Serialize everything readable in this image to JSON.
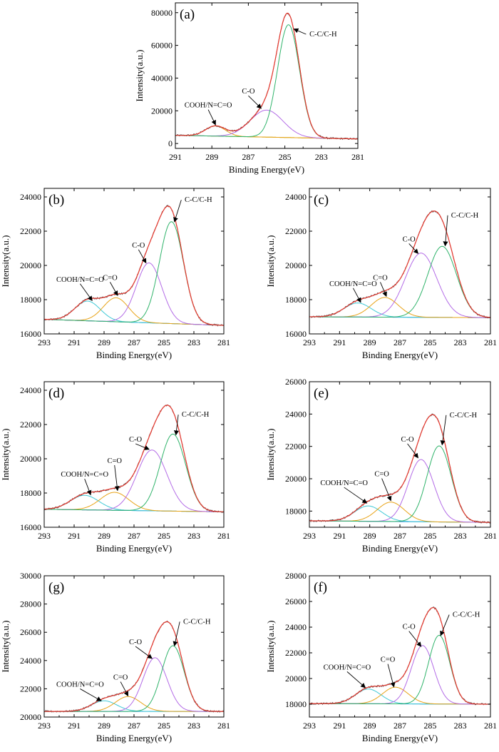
{
  "chart_data": [
    {
      "type": "line",
      "panel_label": "(a)",
      "xlabel": "Binding Energy(eV)",
      "ylabel": "Intensity(a.u.)",
      "xlim": [
        291,
        281
      ],
      "xticks": [
        "291",
        "289",
        "287",
        "285",
        "283",
        "281"
      ],
      "ylim": [
        -3000,
        86000
      ],
      "yticks": [
        "0",
        "20000",
        "40000",
        "60000",
        "80000"
      ],
      "baseline": {
        "start": 5000,
        "end": 2800
      },
      "peaks": [
        {
          "name": "COOH/N=C=O",
          "center": 288.8,
          "height": 6200,
          "sigma": 0.55,
          "color": "#e8a317"
        },
        {
          "name": "C-O",
          "center": 286.0,
          "height": 16500,
          "sigma": 0.9,
          "color": "#b36be6"
        },
        {
          "name": "C-C/C-H",
          "center": 284.8,
          "height": 69000,
          "sigma": 0.6,
          "color": "#2fb36a"
        }
      ],
      "annotations": [
        {
          "text": "COOH/N=C=O",
          "label_x": 289.2,
          "label_y": 22000,
          "arrow_x": 288.8,
          "arrow_y": 11500
        },
        {
          "text": "C-O",
          "label_x": 287.0,
          "label_y": 30500,
          "arrow_x": 286.3,
          "arrow_y": 21500
        },
        {
          "text": "C-C/C-H",
          "label_x": 282.9,
          "label_y": 65500,
          "arrow_x": 284.5,
          "arrow_y": 70000
        }
      ]
    },
    {
      "type": "line",
      "panel_label": "(b)",
      "xlabel": "Binding Energy(eV)",
      "ylabel": "Intensity(a.u.)",
      "xlim": [
        293,
        281
      ],
      "xticks": [
        "293",
        "291",
        "289",
        "287",
        "285",
        "283",
        "281"
      ],
      "ylim": [
        16000,
        24500
      ],
      "yticks": [
        "16000",
        "18000",
        "20000",
        "22000",
        "24000"
      ],
      "baseline": {
        "start": 16850,
        "end": 16500
      },
      "peaks": [
        {
          "name": "COOH/N=C=O",
          "center": 290.1,
          "height": 1150,
          "sigma": 0.85,
          "color": "#3fc9d6"
        },
        {
          "name": "C=O",
          "center": 288.2,
          "height": 1400,
          "sigma": 0.85,
          "color": "#e8a317"
        },
        {
          "name": "C-O",
          "center": 286.0,
          "height": 3500,
          "sigma": 0.85,
          "color": "#b36be6"
        },
        {
          "name": "C-C/C-H",
          "center": 284.5,
          "height": 5950,
          "sigma": 0.8,
          "color": "#2fb36a"
        }
      ],
      "annotations": [
        {
          "text": "COOH/N=C=O",
          "label_x": 290.6,
          "label_y": 19050,
          "arrow_x": 289.8,
          "arrow_y": 17950
        },
        {
          "text": "C=O",
          "label_x": 288.6,
          "label_y": 19150,
          "arrow_x": 288.1,
          "arrow_y": 18250
        },
        {
          "text": "C-O",
          "label_x": 286.7,
          "label_y": 21050,
          "arrow_x": 286.2,
          "arrow_y": 20150
        },
        {
          "text": "C-C/C-H",
          "label_x": 282.7,
          "label_y": 23700,
          "arrow_x": 284.3,
          "arrow_y": 22550
        }
      ]
    },
    {
      "type": "line",
      "panel_label": "(c)",
      "xlabel": "Binding Energy(eV)",
      "ylabel": "Intensity(a.u.)",
      "xlim": [
        293,
        281
      ],
      "xticks": [
        "293",
        "291",
        "289",
        "287",
        "285",
        "283",
        "281"
      ],
      "ylim": [
        16000,
        24500
      ],
      "yticks": [
        "16000",
        "18000",
        "20000",
        "22000",
        "24000"
      ],
      "baseline": {
        "start": 17000,
        "end": 16950
      },
      "peaks": [
        {
          "name": "COOH/N=C=O",
          "center": 289.8,
          "height": 820,
          "sigma": 0.9,
          "color": "#3fc9d6"
        },
        {
          "name": "C=O",
          "center": 288.0,
          "height": 1150,
          "sigma": 0.9,
          "color": "#e8a317"
        },
        {
          "name": "C-O",
          "center": 285.6,
          "height": 3750,
          "sigma": 1.05,
          "color": "#b36be6"
        },
        {
          "name": "C-C/C-H",
          "center": 284.2,
          "height": 4150,
          "sigma": 0.95,
          "color": "#2fb36a"
        }
      ],
      "annotations": [
        {
          "text": "COOH/N=C=O",
          "label_x": 290.1,
          "label_y": 18800,
          "arrow_x": 289.6,
          "arrow_y": 17850
        },
        {
          "text": "C=O",
          "label_x": 288.3,
          "label_y": 19150,
          "arrow_x": 287.9,
          "arrow_y": 18200
        },
        {
          "text": "C-O",
          "label_x": 286.4,
          "label_y": 21400,
          "arrow_x": 285.8,
          "arrow_y": 20700
        },
        {
          "text": "C-C/C-H",
          "label_x": 282.7,
          "label_y": 22800,
          "arrow_x": 284.0,
          "arrow_y": 21150
        }
      ]
    },
    {
      "type": "line",
      "panel_label": "(d)",
      "xlabel": "Binding Energy(eV)",
      "ylabel": "Intensity(a.u.)",
      "xlim": [
        293,
        281
      ],
      "xticks": [
        "293",
        "291",
        "289",
        "287",
        "285",
        "283",
        "281"
      ],
      "ylim": [
        16000,
        24500
      ],
      "yticks": [
        "16000",
        "18000",
        "20000",
        "22000",
        "24000"
      ],
      "baseline": {
        "start": 17050,
        "end": 16900
      },
      "peaks": [
        {
          "name": "COOH/N=C=O",
          "center": 290.3,
          "height": 850,
          "sigma": 0.95,
          "color": "#3fc9d6"
        },
        {
          "name": "C=O",
          "center": 288.3,
          "height": 1050,
          "sigma": 0.95,
          "color": "#e8a317"
        },
        {
          "name": "C-O",
          "center": 285.8,
          "height": 3550,
          "sigma": 1.0,
          "color": "#b36be6"
        },
        {
          "name": "C-C/C-H",
          "center": 284.4,
          "height": 4500,
          "sigma": 0.85,
          "color": "#2fb36a"
        }
      ],
      "annotations": [
        {
          "text": "COOH/N=C=O",
          "label_x": 290.3,
          "label_y": 18950,
          "arrow_x": 289.9,
          "arrow_y": 17900
        },
        {
          "text": "C=O",
          "label_x": 288.3,
          "label_y": 19750,
          "arrow_x": 288.1,
          "arrow_y": 18150
        },
        {
          "text": "C-O",
          "label_x": 286.9,
          "label_y": 21000,
          "arrow_x": 286.0,
          "arrow_y": 20550
        },
        {
          "text": "C-C/C-H",
          "label_x": 282.9,
          "label_y": 22450,
          "arrow_x": 284.2,
          "arrow_y": 21400
        }
      ]
    },
    {
      "type": "line",
      "panel_label": "(e)",
      "xlabel": "Binding Energy(eV)",
      "ylabel": "Intensity(a.u.)",
      "xlim": [
        293,
        281
      ],
      "xticks": [
        "293",
        "291",
        "289",
        "287",
        "285",
        "283",
        "281"
      ],
      "ylim": [
        17000,
        26000
      ],
      "yticks": [
        "18000",
        "20000",
        "22000",
        "24000",
        "26000"
      ],
      "baseline": {
        "start": 17400,
        "end": 17300
      },
      "peaks": [
        {
          "name": "COOH/N=C=O",
          "center": 289.1,
          "height": 950,
          "sigma": 0.9,
          "color": "#3fc9d6"
        },
        {
          "name": "C=O",
          "center": 287.6,
          "height": 1200,
          "sigma": 0.9,
          "color": "#e8a317"
        },
        {
          "name": "C-O",
          "center": 285.6,
          "height": 3850,
          "sigma": 0.85,
          "color": "#b36be6"
        },
        {
          "name": "C-C/C-H",
          "center": 284.4,
          "height": 4700,
          "sigma": 0.8,
          "color": "#2fb36a"
        }
      ],
      "annotations": [
        {
          "text": "COOH/N=C=O",
          "label_x": 290.7,
          "label_y": 19600,
          "arrow_x": 289.2,
          "arrow_y": 18500
        },
        {
          "text": "C=O",
          "label_x": 288.2,
          "label_y": 20150,
          "arrow_x": 287.6,
          "arrow_y": 18650
        },
        {
          "text": "C-O",
          "label_x": 286.5,
          "label_y": 22300,
          "arrow_x": 285.8,
          "arrow_y": 21300
        },
        {
          "text": "C-C/C-H",
          "label_x": 282.8,
          "label_y": 23800,
          "arrow_x": 284.2,
          "arrow_y": 22100
        }
      ]
    },
    {
      "type": "line",
      "panel_label": "(g)",
      "xlabel": "Binding Energy(eV)",
      "ylabel": "Intensity(a.u.)",
      "xlim": [
        293,
        281
      ],
      "xticks": [
        "293",
        "291",
        "289",
        "287",
        "285",
        "283",
        "281"
      ],
      "ylim": [
        20000,
        30000
      ],
      "yticks": [
        "20000",
        "22000",
        "24000",
        "26000",
        "28000",
        "30000"
      ],
      "baseline": {
        "start": 20400,
        "end": 20400
      },
      "peaks": [
        {
          "name": "COOH/N=C=O",
          "center": 289.0,
          "height": 750,
          "sigma": 0.85,
          "color": "#3fc9d6"
        },
        {
          "name": "C=O",
          "center": 287.4,
          "height": 1050,
          "sigma": 0.85,
          "color": "#e8a317"
        },
        {
          "name": "C-O",
          "center": 285.6,
          "height": 3800,
          "sigma": 0.8,
          "color": "#b36be6"
        },
        {
          "name": "C-C/C-H",
          "center": 284.4,
          "height": 4650,
          "sigma": 0.75,
          "color": "#2fb36a"
        }
      ],
      "annotations": [
        {
          "text": "COOH/N=C=O",
          "label_x": 290.6,
          "label_y": 22150,
          "arrow_x": 289.2,
          "arrow_y": 21150
        },
        {
          "text": "C=O",
          "label_x": 287.9,
          "label_y": 22650,
          "arrow_x": 287.4,
          "arrow_y": 21500
        },
        {
          "text": "C-O",
          "label_x": 286.9,
          "label_y": 25150,
          "arrow_x": 285.8,
          "arrow_y": 24150
        },
        {
          "text": "C-C/C-H",
          "label_x": 282.8,
          "label_y": 26600,
          "arrow_x": 284.3,
          "arrow_y": 25050
        }
      ]
    },
    {
      "type": "line",
      "panel_label": "(f)",
      "xlabel": "Binding Energy(eV)",
      "ylabel": "Intensity(a.u.)",
      "xlim": [
        293,
        281
      ],
      "xticks": [
        "293",
        "291",
        "289",
        "287",
        "285",
        "283",
        "281"
      ],
      "ylim": [
        17000,
        28000
      ],
      "yticks": [
        "18000",
        "20000",
        "22000",
        "24000",
        "26000",
        "28000"
      ],
      "baseline": {
        "start": 18050,
        "end": 18000
      },
      "peaks": [
        {
          "name": "COOH/N=C=O",
          "center": 289.1,
          "height": 1150,
          "sigma": 0.85,
          "color": "#3fc9d6"
        },
        {
          "name": "C=O",
          "center": 287.3,
          "height": 1300,
          "sigma": 0.85,
          "color": "#e8a317"
        },
        {
          "name": "C-O",
          "center": 285.5,
          "height": 4550,
          "sigma": 0.75,
          "color": "#b36be6"
        },
        {
          "name": "C-C/C-H",
          "center": 284.4,
          "height": 5350,
          "sigma": 0.7,
          "color": "#2fb36a"
        }
      ],
      "annotations": [
        {
          "text": "COOH/N=C=O",
          "label_x": 290.5,
          "label_y": 20700,
          "arrow_x": 289.3,
          "arrow_y": 19300
        },
        {
          "text": "C=O",
          "label_x": 287.8,
          "label_y": 21300,
          "arrow_x": 287.4,
          "arrow_y": 19350
        },
        {
          "text": "C-O",
          "label_x": 286.4,
          "label_y": 23850,
          "arrow_x": 285.6,
          "arrow_y": 22500
        },
        {
          "text": "C-C/C-H",
          "label_x": 282.6,
          "label_y": 24800,
          "arrow_x": 284.3,
          "arrow_y": 23350
        }
      ]
    }
  ],
  "colors": {
    "envelope": "#e8392f",
    "raw": "#555555",
    "baseline_a": "#c8b020",
    "baseline": "#2080e0"
  }
}
